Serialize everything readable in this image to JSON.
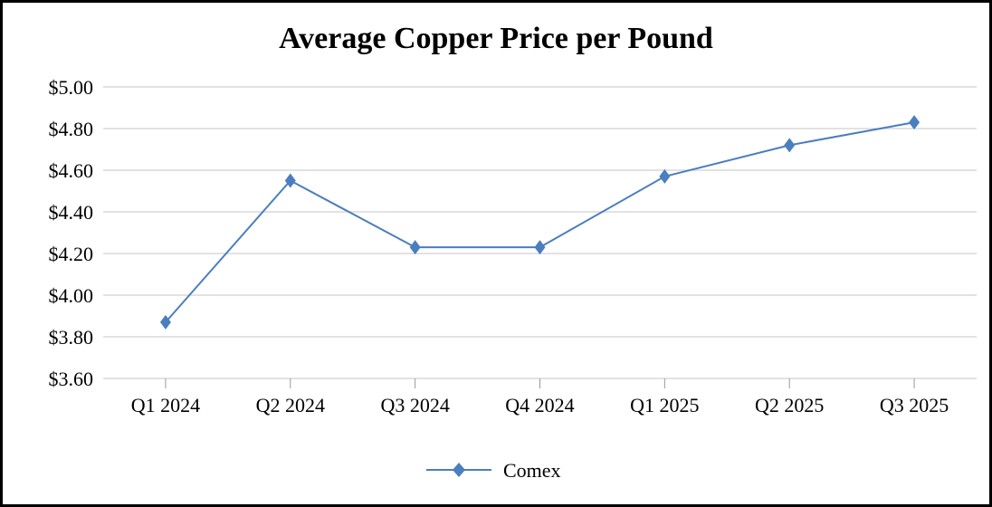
{
  "chart_data": {
    "type": "line",
    "title": "Average Copper Price per Pound",
    "xlabel": "",
    "ylabel": "",
    "categories": [
      "Q1 2024",
      "Q2 2024",
      "Q3 2024",
      "Q4 2024",
      "Q1 2025",
      "Q2 2025",
      "Q3 2025"
    ],
    "series": [
      {
        "name": "Comex",
        "color": "#4a7ebf",
        "marker": "diamond",
        "values": [
          3.87,
          4.55,
          4.23,
          4.23,
          4.57,
          4.72,
          4.83
        ]
      }
    ],
    "ylim": [
      3.6,
      5.0
    ],
    "yticks": [
      3.6,
      3.8,
      4.0,
      4.2,
      4.4,
      4.6,
      4.8,
      5.0
    ],
    "ytick_labels": [
      "$3.60",
      "$3.80",
      "$4.00",
      "$4.20",
      "$4.40",
      "$4.60",
      "$4.80",
      "$5.00"
    ],
    "grid": true,
    "legend_position": "bottom"
  }
}
